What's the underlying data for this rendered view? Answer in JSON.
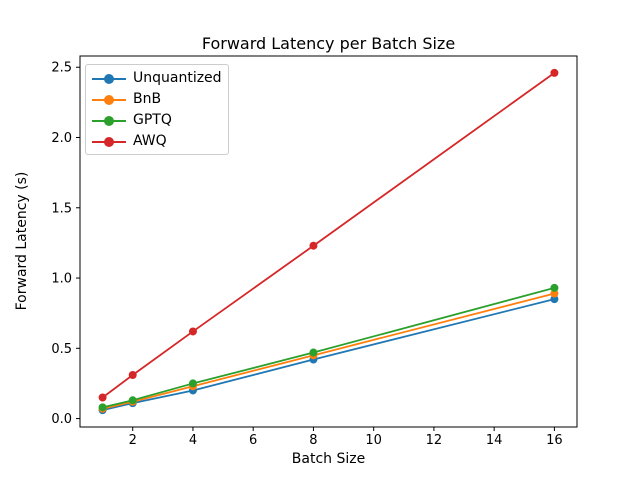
{
  "chart_data": {
    "type": "line",
    "title": "Forward Latency per Batch Size",
    "xlabel": "Batch Size",
    "ylabel": "Forward Latency (s)",
    "x": [
      1,
      2,
      4,
      8,
      16
    ],
    "series": [
      {
        "name": "Unquantized",
        "color": "#1f77b4",
        "values": [
          0.06,
          0.11,
          0.2,
          0.42,
          0.85
        ]
      },
      {
        "name": "BnB",
        "color": "#ff7f0e",
        "values": [
          0.07,
          0.12,
          0.23,
          0.45,
          0.89
        ]
      },
      {
        "name": "GPTQ",
        "color": "#2ca02c",
        "values": [
          0.08,
          0.13,
          0.25,
          0.47,
          0.93
        ]
      },
      {
        "name": "AWQ",
        "color": "#d62728",
        "values": [
          0.15,
          0.31,
          0.62,
          1.23,
          2.46
        ]
      }
    ],
    "xticks": [
      "2",
      "4",
      "6",
      "8",
      "10",
      "12",
      "14",
      "16"
    ],
    "yticks": [
      "0.0",
      "0.5",
      "1.0",
      "1.5",
      "2.0",
      "2.5"
    ],
    "xlim": [
      0.25,
      16.75
    ],
    "ylim": [
      -0.06,
      2.58
    ],
    "grid": false,
    "legend_position": "upper left",
    "axis_color": "#000000",
    "legend_border_color": "#cccccc",
    "background": "#ffffff"
  }
}
